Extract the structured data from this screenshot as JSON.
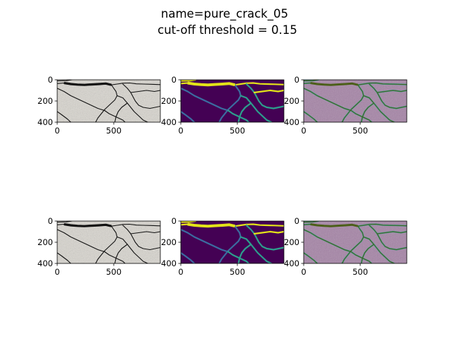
{
  "figure": {
    "title_line1": "name=pure_crack_05",
    "title_line2": "cut-off threshold = 0.15"
  },
  "chart_data": {
    "type": "image-grid",
    "rows": 2,
    "cols": 3,
    "panels": [
      {
        "row": 0,
        "col": 0,
        "content": "grayscale crack photo",
        "colormap": "gray"
      },
      {
        "row": 0,
        "col": 1,
        "content": "predicted crack map",
        "colormap": "viridis"
      },
      {
        "row": 0,
        "col": 2,
        "content": "overlay",
        "colormap": "overlay"
      },
      {
        "row": 1,
        "col": 0,
        "content": "grayscale crack photo",
        "colormap": "gray"
      },
      {
        "row": 1,
        "col": 1,
        "content": "crack map",
        "colormap": "viridis"
      },
      {
        "row": 1,
        "col": 2,
        "content": "overlay",
        "colormap": "overlay"
      }
    ],
    "xticks": [
      0,
      500
    ],
    "yticks": [
      0,
      200,
      400
    ],
    "xlim": [
      0,
      912
    ],
    "ylim": [
      400,
      0
    ]
  },
  "colors": {
    "photo_bg": "#d9d6cf",
    "crack_dark": "#111111",
    "viridis_bg": "#440154",
    "viridis_high": "#e3e419",
    "viridis_mid": "#2c9f8d",
    "viridis_low": "#3b6da0",
    "overlay_bg": "#a583a6",
    "overlay_crack": "#4c5f1a"
  }
}
